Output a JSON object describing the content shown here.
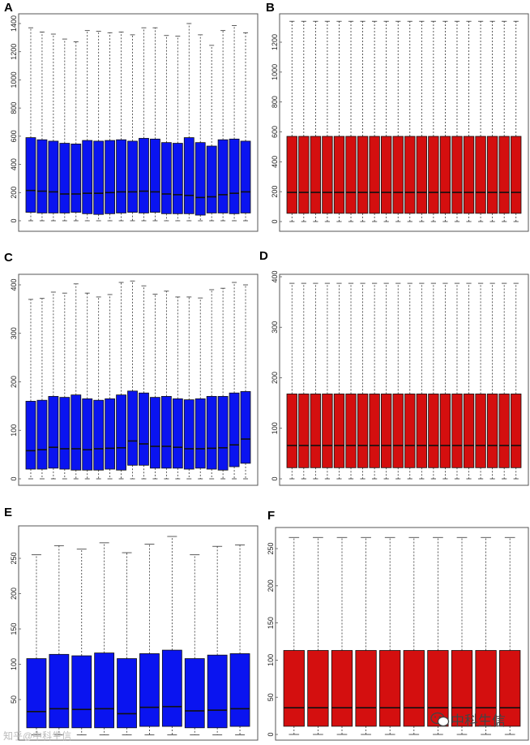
{
  "colors": {
    "blue": "#0a14f0",
    "red": "#d40f0f"
  },
  "chart_data": [
    {
      "panel": "A",
      "type": "box",
      "color": "blue",
      "ylim": [
        0,
        1400
      ],
      "yticks": [
        0,
        200,
        400,
        600,
        800,
        1000,
        1200,
        1400
      ],
      "boxes": [
        {
          "min": 0,
          "q1": 60,
          "median": 215,
          "q3": 590,
          "max": 1370
        },
        {
          "min": 0,
          "q1": 55,
          "median": 210,
          "q3": 575,
          "max": 1340
        },
        {
          "min": 0,
          "q1": 55,
          "median": 205,
          "q3": 565,
          "max": 1325
        },
        {
          "min": 0,
          "q1": 55,
          "median": 190,
          "q3": 550,
          "max": 1290
        },
        {
          "min": 0,
          "q1": 60,
          "median": 190,
          "q3": 545,
          "max": 1270
        },
        {
          "min": 0,
          "q1": 50,
          "median": 195,
          "q3": 570,
          "max": 1350
        },
        {
          "min": 0,
          "q1": 45,
          "median": 195,
          "q3": 565,
          "max": 1345
        },
        {
          "min": 0,
          "q1": 50,
          "median": 200,
          "q3": 570,
          "max": 1335
        },
        {
          "min": 0,
          "q1": 55,
          "median": 205,
          "q3": 575,
          "max": 1340
        },
        {
          "min": 0,
          "q1": 60,
          "median": 205,
          "q3": 565,
          "max": 1320
        },
        {
          "min": 0,
          "q1": 55,
          "median": 210,
          "q3": 585,
          "max": 1370
        },
        {
          "min": 0,
          "q1": 60,
          "median": 205,
          "q3": 580,
          "max": 1370
        },
        {
          "min": 0,
          "q1": 50,
          "median": 190,
          "q3": 555,
          "max": 1315
        },
        {
          "min": 0,
          "q1": 50,
          "median": 185,
          "q3": 550,
          "max": 1310
        },
        {
          "min": 0,
          "q1": 50,
          "median": 180,
          "q3": 590,
          "max": 1400
        },
        {
          "min": 0,
          "q1": 40,
          "median": 165,
          "q3": 555,
          "max": 1320
        },
        {
          "min": 0,
          "q1": 55,
          "median": 170,
          "q3": 530,
          "max": 1245
        },
        {
          "min": 0,
          "q1": 55,
          "median": 185,
          "q3": 575,
          "max": 1350
        },
        {
          "min": 0,
          "q1": 50,
          "median": 195,
          "q3": 580,
          "max": 1385
        },
        {
          "min": 0,
          "q1": 55,
          "median": 205,
          "q3": 565,
          "max": 1335
        }
      ]
    },
    {
      "panel": "B",
      "type": "box",
      "color": "red",
      "ylim": [
        0,
        1350
      ],
      "yticks": [
        0,
        200,
        400,
        600,
        800,
        1000,
        1200
      ],
      "boxes": [
        {
          "min": 0,
          "q1": 55,
          "median": 195,
          "q3": 570,
          "max": 1340
        },
        {
          "min": 0,
          "q1": 55,
          "median": 195,
          "q3": 570,
          "max": 1340
        },
        {
          "min": 0,
          "q1": 55,
          "median": 195,
          "q3": 570,
          "max": 1340
        },
        {
          "min": 0,
          "q1": 55,
          "median": 195,
          "q3": 570,
          "max": 1340
        },
        {
          "min": 0,
          "q1": 55,
          "median": 195,
          "q3": 570,
          "max": 1340
        },
        {
          "min": 0,
          "q1": 55,
          "median": 195,
          "q3": 570,
          "max": 1340
        },
        {
          "min": 0,
          "q1": 55,
          "median": 195,
          "q3": 570,
          "max": 1340
        },
        {
          "min": 0,
          "q1": 55,
          "median": 195,
          "q3": 570,
          "max": 1340
        },
        {
          "min": 0,
          "q1": 55,
          "median": 195,
          "q3": 570,
          "max": 1340
        },
        {
          "min": 0,
          "q1": 55,
          "median": 195,
          "q3": 570,
          "max": 1340
        },
        {
          "min": 0,
          "q1": 55,
          "median": 195,
          "q3": 570,
          "max": 1340
        },
        {
          "min": 0,
          "q1": 55,
          "median": 195,
          "q3": 570,
          "max": 1340
        },
        {
          "min": 0,
          "q1": 55,
          "median": 195,
          "q3": 570,
          "max": 1340
        },
        {
          "min": 0,
          "q1": 55,
          "median": 195,
          "q3": 570,
          "max": 1340
        },
        {
          "min": 0,
          "q1": 55,
          "median": 195,
          "q3": 570,
          "max": 1340
        },
        {
          "min": 0,
          "q1": 55,
          "median": 195,
          "q3": 570,
          "max": 1340
        },
        {
          "min": 0,
          "q1": 55,
          "median": 195,
          "q3": 570,
          "max": 1340
        },
        {
          "min": 0,
          "q1": 55,
          "median": 195,
          "q3": 570,
          "max": 1340
        },
        {
          "min": 0,
          "q1": 55,
          "median": 195,
          "q3": 570,
          "max": 1340
        },
        {
          "min": 0,
          "q1": 55,
          "median": 195,
          "q3": 570,
          "max": 1340
        }
      ]
    },
    {
      "panel": "C",
      "type": "box",
      "color": "blue",
      "ylim": [
        0,
        410
      ],
      "yticks": [
        0,
        100,
        200,
        300,
        400
      ],
      "boxes": [
        {
          "min": 0,
          "q1": 20,
          "median": 58,
          "q3": 160,
          "max": 370
        },
        {
          "min": 0,
          "q1": 20,
          "median": 60,
          "q3": 162,
          "max": 372
        },
        {
          "min": 0,
          "q1": 22,
          "median": 65,
          "q3": 170,
          "max": 385
        },
        {
          "min": 0,
          "q1": 20,
          "median": 62,
          "q3": 168,
          "max": 383
        },
        {
          "min": 0,
          "q1": 18,
          "median": 62,
          "q3": 173,
          "max": 402
        },
        {
          "min": 0,
          "q1": 18,
          "median": 60,
          "q3": 165,
          "max": 383
        },
        {
          "min": 0,
          "q1": 18,
          "median": 62,
          "q3": 162,
          "max": 375
        },
        {
          "min": 0,
          "q1": 20,
          "median": 63,
          "q3": 165,
          "max": 380
        },
        {
          "min": 0,
          "q1": 18,
          "median": 64,
          "q3": 173,
          "max": 405
        },
        {
          "min": 0,
          "q1": 28,
          "median": 78,
          "q3": 181,
          "max": 408
        },
        {
          "min": 0,
          "q1": 28,
          "median": 72,
          "q3": 177,
          "max": 398
        },
        {
          "min": 0,
          "q1": 22,
          "median": 67,
          "q3": 168,
          "max": 381
        },
        {
          "min": 0,
          "q1": 22,
          "median": 67,
          "q3": 170,
          "max": 387
        },
        {
          "min": 0,
          "q1": 22,
          "median": 65,
          "q3": 165,
          "max": 375
        },
        {
          "min": 0,
          "q1": 20,
          "median": 62,
          "q3": 163,
          "max": 375
        },
        {
          "min": 0,
          "q1": 22,
          "median": 62,
          "q3": 165,
          "max": 373
        },
        {
          "min": 0,
          "q1": 20,
          "median": 63,
          "q3": 170,
          "max": 390
        },
        {
          "min": 0,
          "q1": 18,
          "median": 64,
          "q3": 170,
          "max": 393
        },
        {
          "min": 0,
          "q1": 25,
          "median": 70,
          "q3": 177,
          "max": 405
        },
        {
          "min": 0,
          "q1": 32,
          "median": 82,
          "q3": 180,
          "max": 400
        }
      ]
    },
    {
      "panel": "D",
      "type": "box",
      "color": "red",
      "ylim": [
        0,
        395
      ],
      "yticks": [
        0,
        100,
        200,
        300,
        400
      ],
      "boxes": [
        {
          "min": 0,
          "q1": 22,
          "median": 66,
          "q3": 168,
          "max": 387
        },
        {
          "min": 0,
          "q1": 22,
          "median": 66,
          "q3": 168,
          "max": 387
        },
        {
          "min": 0,
          "q1": 22,
          "median": 66,
          "q3": 168,
          "max": 387
        },
        {
          "min": 0,
          "q1": 22,
          "median": 66,
          "q3": 168,
          "max": 387
        },
        {
          "min": 0,
          "q1": 22,
          "median": 66,
          "q3": 168,
          "max": 387
        },
        {
          "min": 0,
          "q1": 22,
          "median": 66,
          "q3": 168,
          "max": 387
        },
        {
          "min": 0,
          "q1": 22,
          "median": 66,
          "q3": 168,
          "max": 387
        },
        {
          "min": 0,
          "q1": 22,
          "median": 66,
          "q3": 168,
          "max": 387
        },
        {
          "min": 0,
          "q1": 22,
          "median": 66,
          "q3": 168,
          "max": 387
        },
        {
          "min": 0,
          "q1": 22,
          "median": 66,
          "q3": 168,
          "max": 387
        },
        {
          "min": 0,
          "q1": 22,
          "median": 66,
          "q3": 168,
          "max": 387
        },
        {
          "min": 0,
          "q1": 22,
          "median": 66,
          "q3": 168,
          "max": 387
        },
        {
          "min": 0,
          "q1": 22,
          "median": 66,
          "q3": 168,
          "max": 387
        },
        {
          "min": 0,
          "q1": 22,
          "median": 66,
          "q3": 168,
          "max": 387
        },
        {
          "min": 0,
          "q1": 22,
          "median": 66,
          "q3": 168,
          "max": 387
        },
        {
          "min": 0,
          "q1": 22,
          "median": 66,
          "q3": 168,
          "max": 387
        },
        {
          "min": 0,
          "q1": 22,
          "median": 66,
          "q3": 168,
          "max": 387
        },
        {
          "min": 0,
          "q1": 22,
          "median": 66,
          "q3": 168,
          "max": 387
        },
        {
          "min": 0,
          "q1": 22,
          "median": 66,
          "q3": 168,
          "max": 387
        },
        {
          "min": 0,
          "q1": 22,
          "median": 66,
          "q3": 168,
          "max": 387
        }
      ]
    },
    {
      "panel": "E",
      "type": "box",
      "color": "blue",
      "ylim": [
        0,
        285
      ],
      "yticks": [
        50,
        100,
        150,
        200,
        250
      ],
      "boxes": [
        {
          "min": 0,
          "q1": 10,
          "median": 33,
          "q3": 108,
          "max": 255
        },
        {
          "min": 0,
          "q1": 10,
          "median": 37,
          "q3": 114,
          "max": 268
        },
        {
          "min": 0,
          "q1": 10,
          "median": 36,
          "q3": 112,
          "max": 263
        },
        {
          "min": 0,
          "q1": 10,
          "median": 37,
          "q3": 116,
          "max": 272
        },
        {
          "min": 0,
          "q1": 10,
          "median": 30,
          "q3": 108,
          "max": 258
        },
        {
          "min": 0,
          "q1": 12,
          "median": 39,
          "q3": 115,
          "max": 270
        },
        {
          "min": 0,
          "q1": 12,
          "median": 40,
          "q3": 120,
          "max": 281
        },
        {
          "min": 0,
          "q1": 10,
          "median": 34,
          "q3": 108,
          "max": 255
        },
        {
          "min": 0,
          "q1": 10,
          "median": 35,
          "q3": 113,
          "max": 267
        },
        {
          "min": 0,
          "q1": 12,
          "median": 37,
          "q3": 115,
          "max": 269
        }
      ]
    },
    {
      "panel": "F",
      "type": "box",
      "color": "red",
      "ylim": [
        0,
        270
      ],
      "yticks": [
        0,
        50,
        100,
        150,
        200,
        250
      ],
      "boxes": [
        {
          "min": 0,
          "q1": 11,
          "median": 36,
          "q3": 113,
          "max": 265
        },
        {
          "min": 0,
          "q1": 11,
          "median": 36,
          "q3": 113,
          "max": 265
        },
        {
          "min": 0,
          "q1": 11,
          "median": 36,
          "q3": 113,
          "max": 265
        },
        {
          "min": 0,
          "q1": 11,
          "median": 36,
          "q3": 113,
          "max": 265
        },
        {
          "min": 0,
          "q1": 11,
          "median": 36,
          "q3": 113,
          "max": 265
        },
        {
          "min": 0,
          "q1": 11,
          "median": 36,
          "q3": 113,
          "max": 265
        },
        {
          "min": 0,
          "q1": 11,
          "median": 36,
          "q3": 113,
          "max": 265
        },
        {
          "min": 0,
          "q1": 11,
          "median": 36,
          "q3": 113,
          "max": 265
        },
        {
          "min": 0,
          "q1": 11,
          "median": 36,
          "q3": 113,
          "max": 265
        },
        {
          "min": 0,
          "q1": 11,
          "median": 36,
          "q3": 113,
          "max": 265
        }
      ]
    }
  ],
  "watermark": {
    "brand_text": "中科生信",
    "icon": "wechat-icon",
    "left_text": "知乎@中科生信"
  }
}
